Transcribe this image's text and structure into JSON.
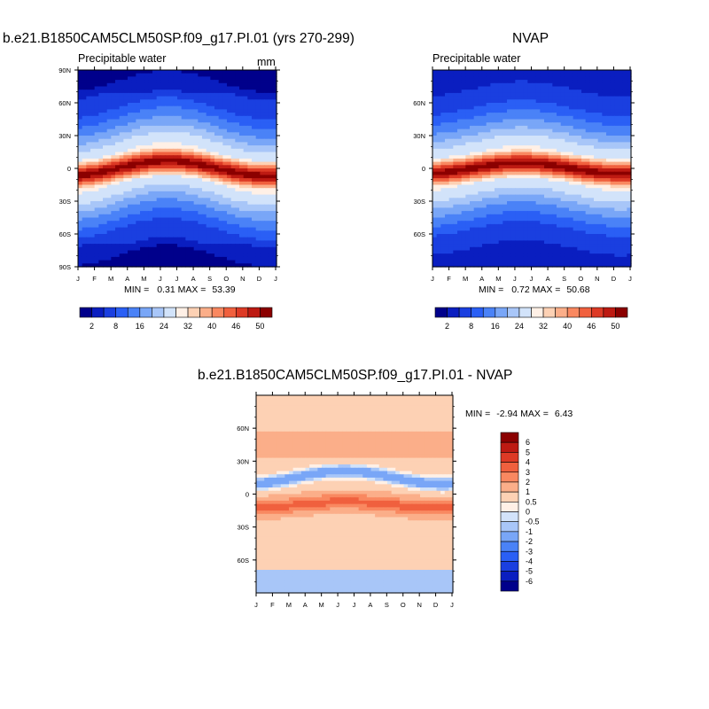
{
  "chart_data": [
    {
      "type": "heatmap",
      "title": "b.e21.B1850CAM5CLM50SP.f09_g17.PI.01 (yrs 270-299)",
      "subtitle": "Precipitable water",
      "units": "mm",
      "x_ticklabels": [
        "J",
        "F",
        "M",
        "A",
        "M",
        "J",
        "J",
        "A",
        "S",
        "O",
        "N",
        "D",
        "J"
      ],
      "y_ticklabels": [
        "90N",
        "60N",
        "30N",
        "0",
        "30S",
        "60S",
        "90S"
      ],
      "ylim": [
        -90,
        90
      ],
      "min_label": "MIN =",
      "min": "0.31",
      "max_label": "MAX =",
      "max": "53.39",
      "colorbar": {
        "orientation": "horizontal",
        "ticklabels": [
          "2",
          "8",
          "16",
          "24",
          "32",
          "40",
          "46",
          "50"
        ],
        "colors": [
          "#00008b",
          "#0a1ec0",
          "#1a3fe0",
          "#2a5ff5",
          "#4a82f7",
          "#79a6f7",
          "#a8c6f8",
          "#d2e3fa",
          "#fff0e6",
          "#fdd1b4",
          "#fbae89",
          "#f98860",
          "#f0603e",
          "#dd3a25",
          "#bd1a12",
          "#8b0000"
        ]
      }
    },
    {
      "type": "heatmap",
      "title": "NVAP",
      "subtitle": "Precipitable water",
      "x_ticklabels": [
        "J",
        "F",
        "M",
        "A",
        "M",
        "J",
        "J",
        "A",
        "S",
        "O",
        "N",
        "D",
        "J"
      ],
      "y_ticklabels": [
        "60N",
        "30N",
        "0",
        "30S",
        "60S"
      ],
      "ylim": [
        -90,
        90
      ],
      "min_label": "MIN =",
      "min": "0.72",
      "max_label": "MAX =",
      "max": "50.68",
      "colorbar": {
        "orientation": "horizontal",
        "ticklabels": [
          "2",
          "8",
          "16",
          "24",
          "32",
          "40",
          "46",
          "50"
        ],
        "colors": [
          "#00008b",
          "#0a1ec0",
          "#1a3fe0",
          "#2a5ff5",
          "#4a82f7",
          "#79a6f7",
          "#a8c6f8",
          "#d2e3fa",
          "#fff0e6",
          "#fdd1b4",
          "#fbae89",
          "#f98860",
          "#f0603e",
          "#dd3a25",
          "#bd1a12",
          "#8b0000"
        ]
      }
    },
    {
      "type": "heatmap",
      "title": "b.e21.B1850CAM5CLM50SP.f09_g17.PI.01 - NVAP",
      "x_ticklabels": [
        "J",
        "F",
        "M",
        "A",
        "M",
        "J",
        "J",
        "A",
        "S",
        "O",
        "N",
        "D",
        "J"
      ],
      "y_ticklabels": [
        "60N",
        "30N",
        "0",
        "30S",
        "60S"
      ],
      "ylim": [
        -90,
        90
      ],
      "min_label": "MIN =",
      "min": "-2.94",
      "max_label": "MAX =",
      "max": "6.43",
      "colorbar": {
        "orientation": "vertical",
        "ticklabels": [
          "6",
          "5",
          "4",
          "3",
          "2",
          "1",
          "0.5",
          "0",
          "-0.5",
          "-1",
          "-2",
          "-3",
          "-4",
          "-5",
          "-6"
        ],
        "colors": [
          "#8b0000",
          "#bd1a12",
          "#dd3a25",
          "#f0603e",
          "#f98860",
          "#fbae89",
          "#fdd1b4",
          "#fff0e6",
          "#d2e3fa",
          "#a8c6f8",
          "#79a6f7",
          "#4a82f7",
          "#2a5ff5",
          "#1a3fe0",
          "#0a1ec0",
          "#00008b"
        ]
      }
    }
  ]
}
